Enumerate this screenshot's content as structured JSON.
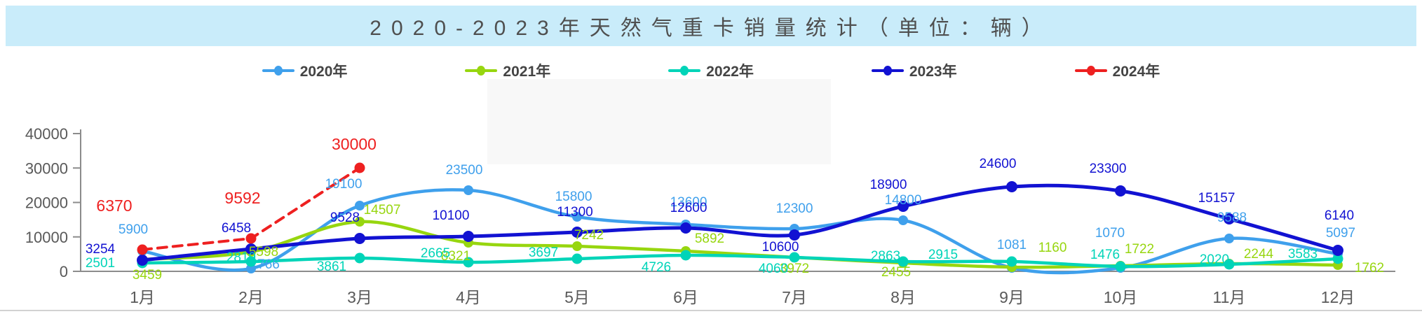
{
  "header": {
    "title": "2020-2023年天然气重卡销量统计（单位：辆）"
  },
  "chart_data": {
    "type": "line",
    "title": "2020-2023年天然气重卡销量统计（单位：辆）",
    "xlabel": "",
    "ylabel": "",
    "ylim": [
      0,
      40000
    ],
    "yticks": [
      "0",
      "10000",
      "20000",
      "30000",
      "40000"
    ],
    "grid": false,
    "legend_position": "top",
    "categories": [
      "1月",
      "2月",
      "3月",
      "4月",
      "5月",
      "6月",
      "7月",
      "8月",
      "9月",
      "10月",
      "11月",
      "12月"
    ],
    "series": [
      {
        "name": "2020年",
        "color": "#3fa0ec",
        "dashed": false,
        "values": [
          5900,
          766,
          19100,
          23500,
          15800,
          13600,
          12300,
          14800,
          1081,
          1070,
          9588,
          5097
        ]
      },
      {
        "name": "2021年",
        "color": "#97d60f",
        "dashed": false,
        "values": [
          3459,
          5598,
          14507,
          8321,
          7242,
          5892,
          3972,
          2455,
          1160,
          1722,
          2244,
          1762
        ]
      },
      {
        "name": "2022年",
        "color": "#00d4b8",
        "dashed": false,
        "values": [
          2501,
          2819,
          3861,
          2665,
          3697,
          4726,
          4060,
          2863,
          2915,
          1476,
          2020,
          3583
        ]
      },
      {
        "name": "2023年",
        "color": "#1212d2",
        "dashed": false,
        "values": [
          3254,
          6458,
          9528,
          10100,
          11300,
          12600,
          10600,
          18900,
          24600,
          23300,
          15157,
          6140
        ]
      },
      {
        "name": "2024年",
        "color": "#ee2020",
        "dashed": true,
        "values": [
          6370,
          9592,
          30000
        ]
      }
    ]
  }
}
